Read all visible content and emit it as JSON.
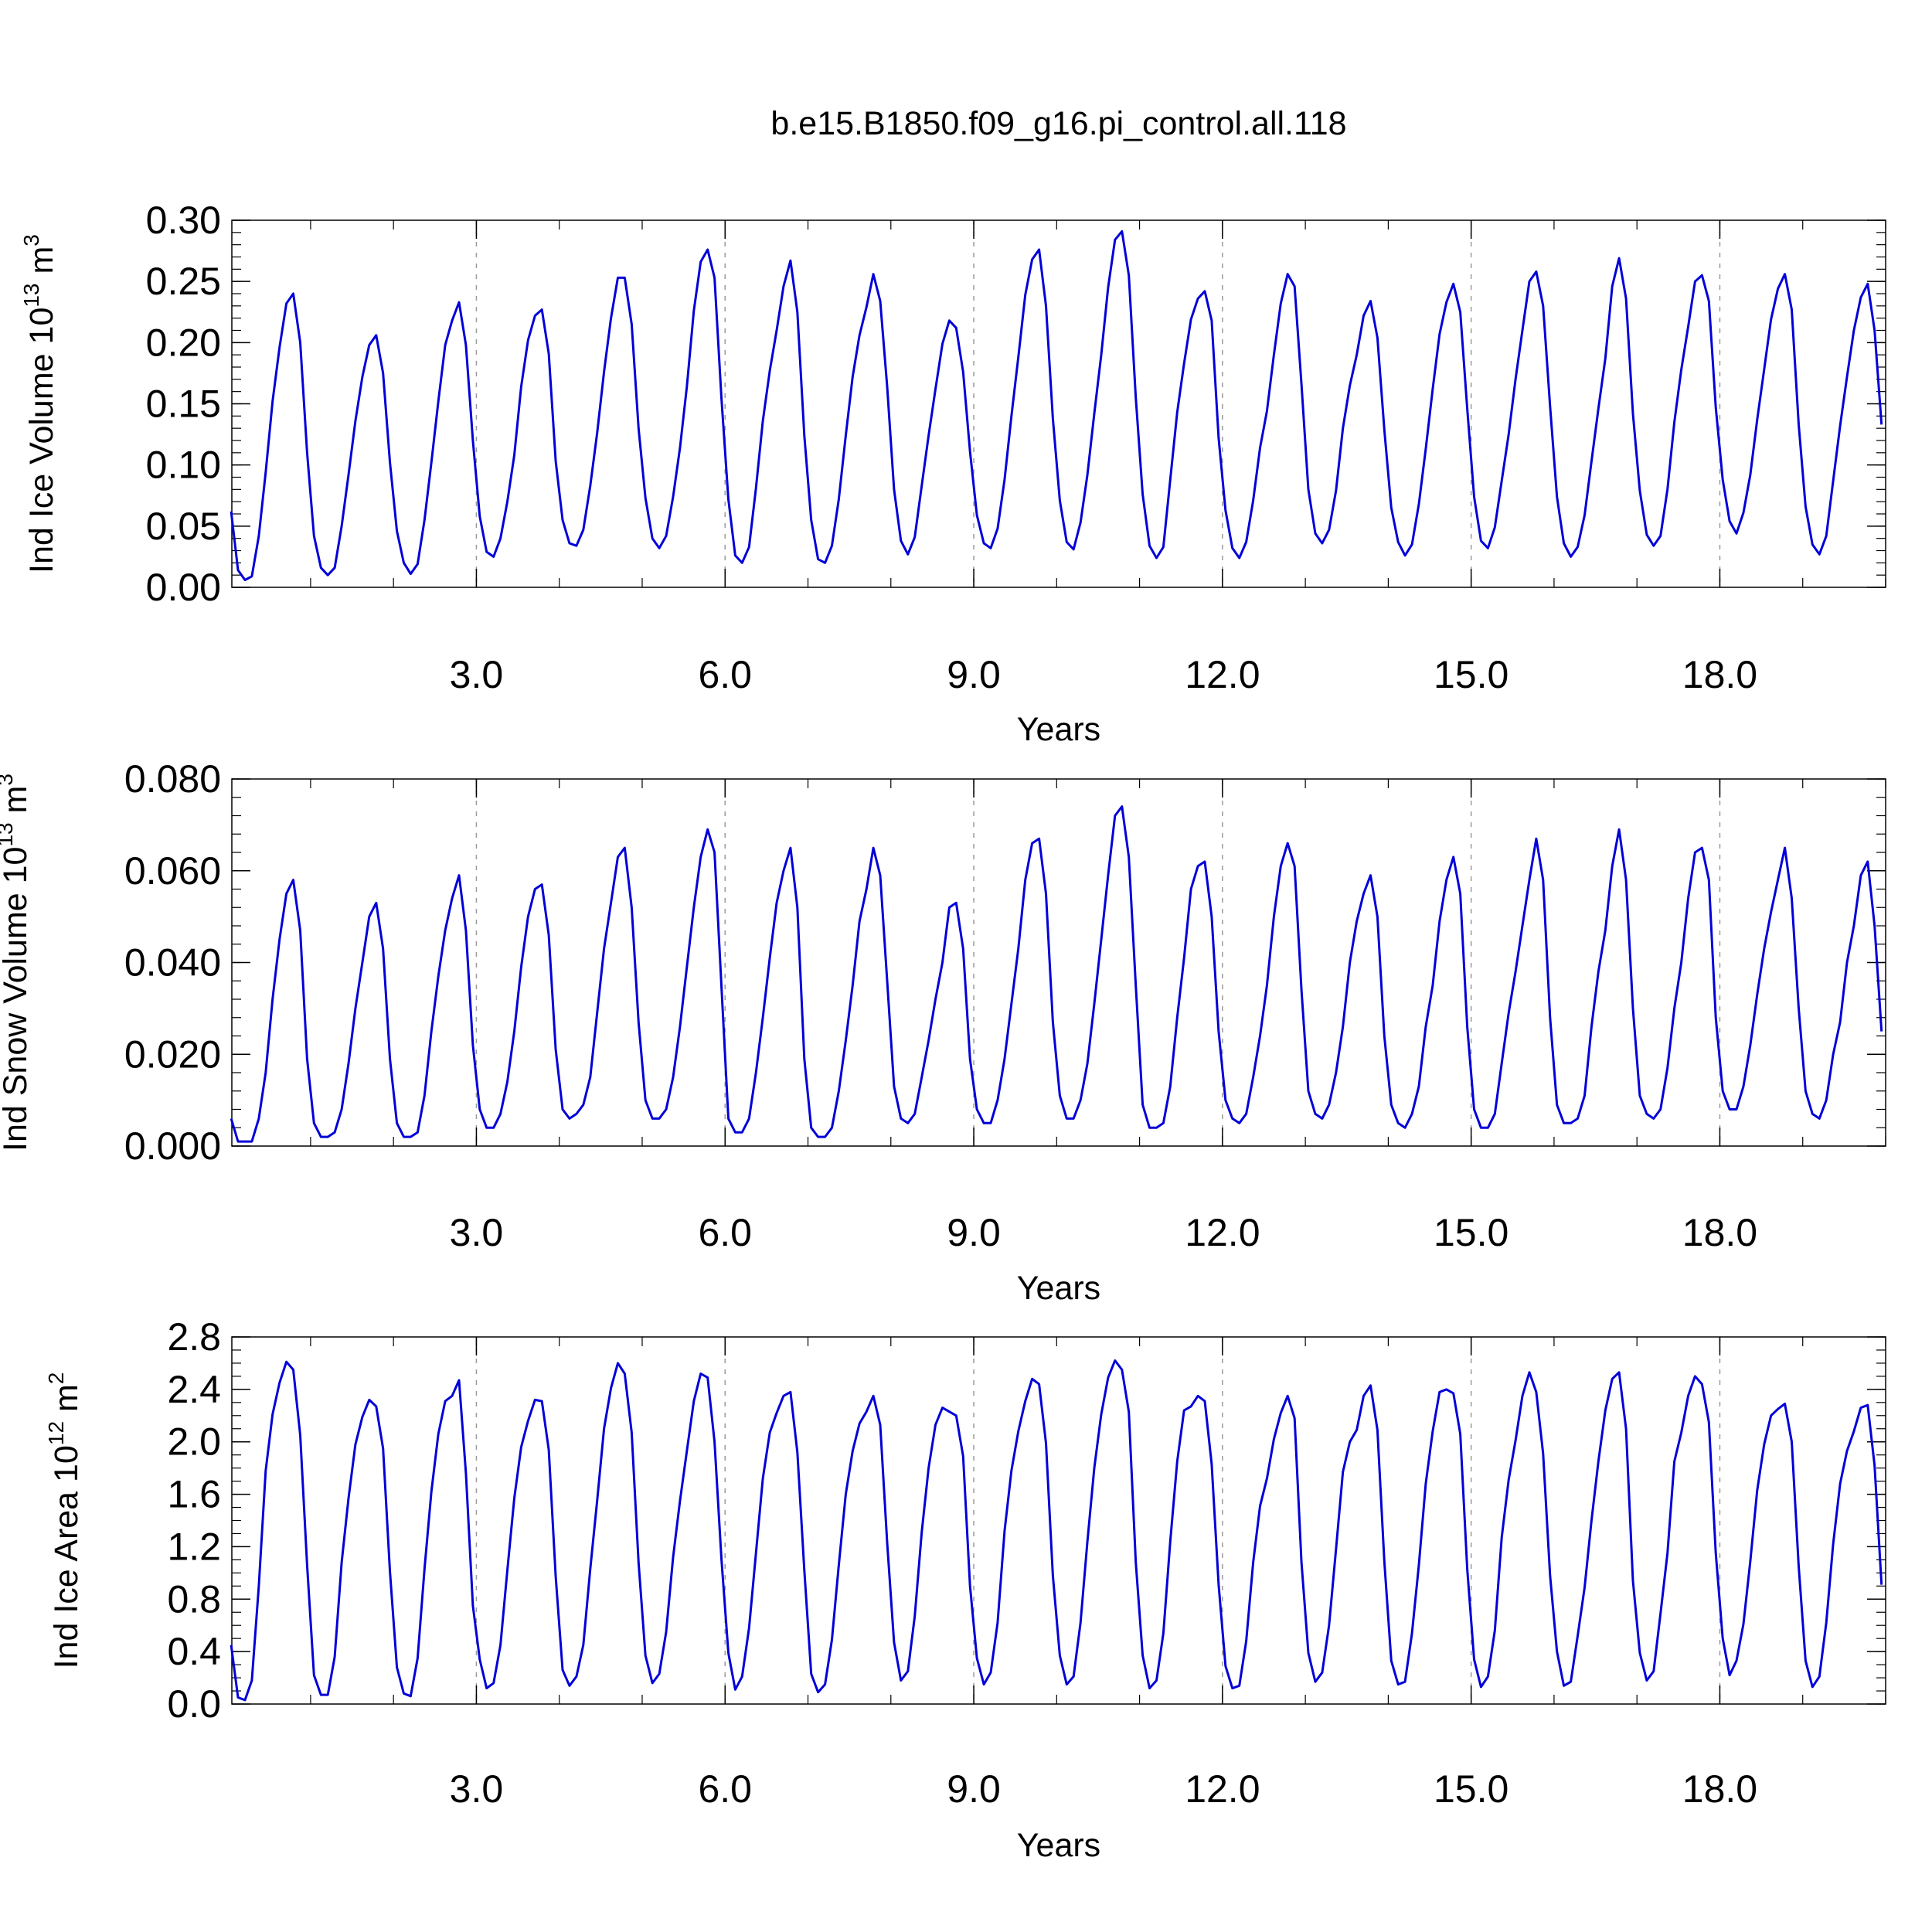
{
  "figure_title": "b.e15.B1850.f09_g16.pi_control.all.118",
  "chart_data": [
    {
      "type": "line",
      "panel": "ice-volume",
      "title": "b.e15.B1850.f09_g16.pi_control.all.118",
      "xlabel": "Years",
      "ylabel_main": "Ind Ice Volume 10",
      "ylabel_exp": "13",
      "ylabel_unit": " m",
      "ylabel_unit_exp": "3",
      "xlim": [
        0.05,
        20.0
      ],
      "ylim": [
        0.0,
        0.3
      ],
      "xticks": [
        3.0,
        6.0,
        9.0,
        12.0,
        15.0,
        18.0
      ],
      "xtick_labels": [
        "3.0",
        "6.0",
        "9.0",
        "12.0",
        "15.0",
        "18.0"
      ],
      "yticks": [
        0.0,
        0.05,
        0.1,
        0.15,
        0.2,
        0.25,
        0.3
      ],
      "ytick_labels": [
        "0.00",
        "0.05",
        "0.10",
        "0.15",
        "0.20",
        "0.25",
        "0.30"
      ],
      "y_minor_step": 0.01,
      "x_minor_step": 1.0,
      "vgrid": true,
      "color": "#0000d8",
      "x_start": 0.0417,
      "x_step": 0.0833,
      "values": [
        0.062,
        0.014,
        0.006,
        0.009,
        0.042,
        0.094,
        0.152,
        0.196,
        0.232,
        0.24,
        0.2,
        0.11,
        0.042,
        0.016,
        0.01,
        0.016,
        0.05,
        0.092,
        0.136,
        0.172,
        0.198,
        0.206,
        0.175,
        0.102,
        0.046,
        0.02,
        0.011,
        0.019,
        0.055,
        0.102,
        0.152,
        0.198,
        0.218,
        0.233,
        0.198,
        0.12,
        0.058,
        0.029,
        0.025,
        0.04,
        0.07,
        0.108,
        0.164,
        0.202,
        0.222,
        0.227,
        0.191,
        0.103,
        0.055,
        0.036,
        0.034,
        0.047,
        0.083,
        0.126,
        0.176,
        0.22,
        0.253,
        0.253,
        0.215,
        0.13,
        0.073,
        0.04,
        0.032,
        0.042,
        0.074,
        0.114,
        0.164,
        0.226,
        0.266,
        0.276,
        0.253,
        0.155,
        0.072,
        0.026,
        0.02,
        0.033,
        0.081,
        0.136,
        0.177,
        0.21,
        0.246,
        0.267,
        0.225,
        0.124,
        0.055,
        0.023,
        0.02,
        0.034,
        0.072,
        0.124,
        0.172,
        0.206,
        0.229,
        0.256,
        0.234,
        0.164,
        0.08,
        0.038,
        0.027,
        0.041,
        0.083,
        0.124,
        0.162,
        0.199,
        0.218,
        0.212,
        0.176,
        0.111,
        0.059,
        0.036,
        0.032,
        0.048,
        0.088,
        0.14,
        0.188,
        0.239,
        0.268,
        0.276,
        0.23,
        0.138,
        0.071,
        0.037,
        0.031,
        0.053,
        0.092,
        0.142,
        0.19,
        0.245,
        0.284,
        0.291,
        0.255,
        0.155,
        0.076,
        0.034,
        0.024,
        0.033,
        0.088,
        0.143,
        0.183,
        0.219,
        0.236,
        0.242,
        0.218,
        0.122,
        0.063,
        0.032,
        0.024,
        0.037,
        0.071,
        0.114,
        0.144,
        0.19,
        0.232,
        0.256,
        0.246,
        0.166,
        0.08,
        0.044,
        0.036,
        0.047,
        0.079,
        0.13,
        0.165,
        0.19,
        0.222,
        0.234,
        0.204,
        0.129,
        0.065,
        0.037,
        0.026,
        0.035,
        0.068,
        0.113,
        0.162,
        0.207,
        0.233,
        0.248,
        0.225,
        0.146,
        0.074,
        0.038,
        0.032,
        0.049,
        0.087,
        0.125,
        0.17,
        0.21,
        0.25,
        0.258,
        0.23,
        0.148,
        0.074,
        0.036,
        0.025,
        0.033,
        0.059,
        0.103,
        0.146,
        0.187,
        0.246,
        0.269,
        0.236,
        0.142,
        0.079,
        0.043,
        0.034,
        0.042,
        0.08,
        0.135,
        0.178,
        0.213,
        0.25,
        0.255,
        0.234,
        0.147,
        0.088,
        0.054,
        0.044,
        0.061,
        0.092,
        0.137,
        0.178,
        0.219,
        0.244,
        0.256,
        0.227,
        0.133,
        0.066,
        0.035,
        0.027,
        0.042,
        0.087,
        0.132,
        0.172,
        0.21,
        0.237,
        0.248,
        0.21,
        0.133
      ]
    },
    {
      "type": "line",
      "panel": "snow-volume",
      "xlabel": "Years",
      "ylabel_main": "Ind Snow Volume 10",
      "ylabel_exp": "13",
      "ylabel_unit": " m",
      "ylabel_unit_exp": "3",
      "xlim": [
        0.05,
        20.0
      ],
      "ylim": [
        0.0,
        0.08
      ],
      "xticks": [
        3.0,
        6.0,
        9.0,
        12.0,
        15.0,
        18.0
      ],
      "xtick_labels": [
        "3.0",
        "6.0",
        "9.0",
        "12.0",
        "15.0",
        "18.0"
      ],
      "yticks": [
        0.0,
        0.02,
        0.04,
        0.06,
        0.08
      ],
      "ytick_labels": [
        "0.000",
        "0.020",
        "0.040",
        "0.060",
        "0.080"
      ],
      "y_minor_step": 0.004,
      "x_minor_step": 1.0,
      "vgrid": true,
      "color": "#0000d8",
      "x_start": 0.0417,
      "x_step": 0.0833,
      "values": [
        0.006,
        0.001,
        0.001,
        0.001,
        0.006,
        0.016,
        0.032,
        0.045,
        0.055,
        0.058,
        0.047,
        0.019,
        0.005,
        0.002,
        0.002,
        0.003,
        0.008,
        0.018,
        0.03,
        0.04,
        0.05,
        0.053,
        0.043,
        0.019,
        0.005,
        0.002,
        0.002,
        0.003,
        0.011,
        0.025,
        0.037,
        0.047,
        0.054,
        0.059,
        0.047,
        0.022,
        0.008,
        0.004,
        0.004,
        0.007,
        0.014,
        0.025,
        0.039,
        0.05,
        0.056,
        0.057,
        0.046,
        0.021,
        0.008,
        0.006,
        0.007,
        0.009,
        0.015,
        0.029,
        0.043,
        0.053,
        0.063,
        0.065,
        0.052,
        0.027,
        0.01,
        0.006,
        0.006,
        0.008,
        0.015,
        0.026,
        0.039,
        0.052,
        0.063,
        0.069,
        0.064,
        0.035,
        0.006,
        0.003,
        0.003,
        0.006,
        0.016,
        0.028,
        0.041,
        0.053,
        0.06,
        0.065,
        0.052,
        0.019,
        0.004,
        0.002,
        0.002,
        0.004,
        0.012,
        0.023,
        0.035,
        0.049,
        0.056,
        0.065,
        0.059,
        0.036,
        0.013,
        0.006,
        0.005,
        0.007,
        0.015,
        0.023,
        0.032,
        0.04,
        0.052,
        0.053,
        0.043,
        0.019,
        0.008,
        0.005,
        0.005,
        0.01,
        0.019,
        0.031,
        0.043,
        0.058,
        0.066,
        0.067,
        0.055,
        0.027,
        0.011,
        0.006,
        0.006,
        0.01,
        0.018,
        0.031,
        0.045,
        0.059,
        0.072,
        0.074,
        0.063,
        0.035,
        0.009,
        0.004,
        0.004,
        0.005,
        0.013,
        0.028,
        0.041,
        0.056,
        0.061,
        0.062,
        0.05,
        0.025,
        0.01,
        0.006,
        0.005,
        0.007,
        0.015,
        0.024,
        0.035,
        0.05,
        0.061,
        0.066,
        0.061,
        0.034,
        0.012,
        0.007,
        0.006,
        0.009,
        0.016,
        0.026,
        0.04,
        0.049,
        0.055,
        0.059,
        0.05,
        0.024,
        0.009,
        0.005,
        0.004,
        0.007,
        0.013,
        0.026,
        0.035,
        0.049,
        0.058,
        0.063,
        0.055,
        0.026,
        0.008,
        0.004,
        0.004,
        0.007,
        0.018,
        0.029,
        0.038,
        0.048,
        0.058,
        0.067,
        0.058,
        0.028,
        0.009,
        0.005,
        0.005,
        0.006,
        0.011,
        0.026,
        0.038,
        0.047,
        0.061,
        0.069,
        0.058,
        0.03,
        0.011,
        0.007,
        0.006,
        0.008,
        0.017,
        0.03,
        0.04,
        0.054,
        0.064,
        0.065,
        0.058,
        0.028,
        0.012,
        0.008,
        0.008,
        0.013,
        0.022,
        0.033,
        0.043,
        0.051,
        0.058,
        0.065,
        0.054,
        0.03,
        0.012,
        0.007,
        0.006,
        0.01,
        0.02,
        0.027,
        0.04,
        0.048,
        0.059,
        0.062,
        0.048,
        0.025
      ]
    },
    {
      "type": "line",
      "panel": "ice-area",
      "xlabel": "Years",
      "ylabel_main": "Ind Ice Area 10",
      "ylabel_exp": "12",
      "ylabel_unit": " m",
      "ylabel_unit_exp": "2",
      "xlim": [
        0.05,
        20.0
      ],
      "ylim": [
        0.0,
        2.8
      ],
      "xticks": [
        3.0,
        6.0,
        9.0,
        12.0,
        15.0,
        18.0
      ],
      "xtick_labels": [
        "3.0",
        "6.0",
        "9.0",
        "12.0",
        "15.0",
        "18.0"
      ],
      "yticks": [
        0.0,
        0.4,
        0.8,
        1.2,
        1.6,
        2.0,
        2.4,
        2.8
      ],
      "ytick_labels": [
        "0.0",
        "0.4",
        "0.8",
        "1.2",
        "1.6",
        "2.0",
        "2.4",
        "2.8"
      ],
      "y_minor_step": 0.1,
      "x_minor_step": 1.0,
      "vgrid": true,
      "color": "#0000d8",
      "x_start": 0.0417,
      "x_step": 0.0833,
      "values": [
        0.45,
        0.05,
        0.03,
        0.18,
        0.9,
        1.78,
        2.21,
        2.45,
        2.61,
        2.55,
        2.05,
        1.06,
        0.22,
        0.07,
        0.07,
        0.36,
        1.08,
        1.57,
        1.98,
        2.19,
        2.32,
        2.27,
        1.95,
        1.01,
        0.28,
        0.08,
        0.06,
        0.35,
        1.03,
        1.62,
        2.06,
        2.31,
        2.35,
        2.47,
        1.76,
        0.75,
        0.34,
        0.12,
        0.16,
        0.45,
        1.02,
        1.57,
        1.96,
        2.16,
        2.32,
        2.31,
        1.94,
        0.97,
        0.26,
        0.14,
        0.21,
        0.45,
        1.03,
        1.55,
        2.1,
        2.41,
        2.6,
        2.52,
        2.07,
        1.08,
        0.37,
        0.16,
        0.23,
        0.55,
        1.12,
        1.55,
        1.93,
        2.31,
        2.52,
        2.49,
        2.0,
        1.11,
        0.39,
        0.11,
        0.21,
        0.58,
        1.15,
        1.72,
        2.07,
        2.22,
        2.35,
        2.38,
        1.92,
        1.02,
        0.23,
        0.09,
        0.15,
        0.49,
        1.06,
        1.6,
        1.93,
        2.14,
        2.23,
        2.35,
        2.13,
        1.23,
        0.47,
        0.18,
        0.25,
        0.67,
        1.31,
        1.8,
        2.13,
        2.26,
        2.23,
        2.2,
        1.89,
        0.9,
        0.35,
        0.15,
        0.24,
        0.62,
        1.32,
        1.78,
        2.08,
        2.31,
        2.48,
        2.44,
        1.99,
        0.98,
        0.37,
        0.15,
        0.21,
        0.62,
        1.24,
        1.8,
        2.21,
        2.49,
        2.62,
        2.55,
        2.23,
        1.08,
        0.37,
        0.12,
        0.18,
        0.54,
        1.24,
        1.85,
        2.24,
        2.27,
        2.35,
        2.31,
        1.83,
        0.91,
        0.29,
        0.12,
        0.14,
        0.48,
        1.08,
        1.51,
        1.72,
        2.02,
        2.22,
        2.35,
        2.18,
        1.08,
        0.39,
        0.17,
        0.24,
        0.6,
        1.18,
        1.77,
        2.0,
        2.09,
        2.35,
        2.43,
        2.09,
        1.09,
        0.33,
        0.15,
        0.17,
        0.54,
        1.06,
        1.68,
        2.08,
        2.38,
        2.4,
        2.37,
        2.06,
        1.03,
        0.34,
        0.13,
        0.21,
        0.56,
        1.27,
        1.71,
        2.01,
        2.35,
        2.53,
        2.38,
        1.91,
        0.98,
        0.4,
        0.14,
        0.17,
        0.52,
        0.89,
        1.4,
        1.85,
        2.24,
        2.48,
        2.53,
        2.1,
        0.94,
        0.39,
        0.18,
        0.25,
        0.69,
        1.15,
        1.85,
        2.07,
        2.35,
        2.5,
        2.44,
        2.15,
        1.15,
        0.5,
        0.22,
        0.33,
        0.61,
        1.09,
        1.63,
        1.98,
        2.2,
        2.25,
        2.29,
        2.0,
        1.05,
        0.33,
        0.13,
        0.21,
        0.62,
        1.22,
        1.68,
        1.93,
        2.08,
        2.26,
        2.28,
        1.82,
        0.91
      ]
    }
  ]
}
